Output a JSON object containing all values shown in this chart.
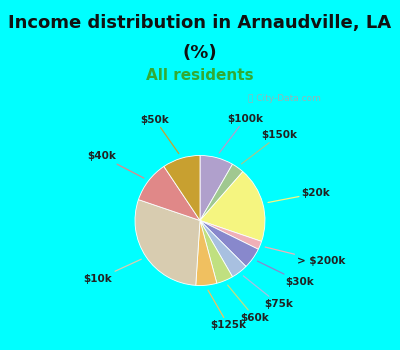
{
  "title_line1": "Income distribution in Arnaudville, LA",
  "title_line2": "(%)",
  "subtitle": "All residents",
  "title_color": "#111111",
  "subtitle_color": "#33aa33",
  "bg_color": "#00ffff",
  "chart_bg_color": "#d8eedc",
  "watermark": "City-Data.com",
  "slices": [
    {
      "label": "$100k",
      "value": 8,
      "color": "#b0a0cc"
    },
    {
      "label": "$150k",
      "value": 3,
      "color": "#a0c890"
    },
    {
      "label": "$20k",
      "value": 18,
      "color": "#f5f580"
    },
    {
      "label": "> $200k",
      "value": 2,
      "color": "#f0b0b8"
    },
    {
      "label": "$30k",
      "value": 5,
      "color": "#8888cc"
    },
    {
      "label": "$75k",
      "value": 4,
      "color": "#a8c0e0"
    },
    {
      "label": "$60k",
      "value": 4,
      "color": "#c0e080"
    },
    {
      "label": "$125k",
      "value": 5,
      "color": "#f0c060"
    },
    {
      "label": "$10k",
      "value": 28,
      "color": "#d8ccb0"
    },
    {
      "label": "$40k",
      "value": 10,
      "color": "#e08888"
    },
    {
      "label": "$50k",
      "value": 9,
      "color": "#c8a030"
    }
  ],
  "label_fontsize": 7.5,
  "label_color": "#222222",
  "title_fontsize": 13,
  "subtitle_fontsize": 11,
  "line_colors": [
    "#b0a0cc",
    "#a0c890",
    "#f5f580",
    "#f0b0b8",
    "#8888cc",
    "#a8c0e0",
    "#c0e080",
    "#f0c060",
    "#d8ccb0",
    "#e08888",
    "#c8a030"
  ]
}
